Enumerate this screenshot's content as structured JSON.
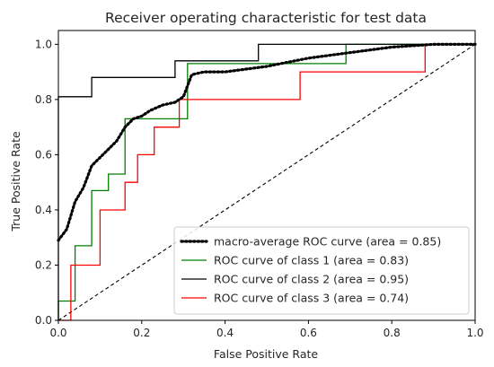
{
  "chart_data": {
    "type": "line",
    "title": "Receiver operating characteristic for test data",
    "xlabel": "False Positive Rate",
    "ylabel": "True Positive Rate",
    "xlim": [
      0.0,
      1.0
    ],
    "ylim": [
      0.0,
      1.05
    ],
    "xticks": [
      "0.0",
      "0.2",
      "0.4",
      "0.6",
      "0.8",
      "1.0"
    ],
    "yticks": [
      "0.0",
      "0.2",
      "0.4",
      "0.6",
      "0.8",
      "1.0"
    ],
    "grid": false,
    "legend_position": "lower-right",
    "series": [
      {
        "name": "macro-average ROC curve (area = 0.85)",
        "color": "#000000",
        "style": "dotted",
        "x": [
          0.0,
          0.02,
          0.04,
          0.06,
          0.08,
          0.1,
          0.12,
          0.14,
          0.16,
          0.18,
          0.2,
          0.22,
          0.25,
          0.28,
          0.3,
          0.32,
          0.35,
          0.4,
          0.5,
          0.6,
          0.7,
          0.8,
          0.9,
          1.0
        ],
        "y": [
          0.29,
          0.33,
          0.43,
          0.48,
          0.56,
          0.59,
          0.62,
          0.65,
          0.7,
          0.73,
          0.74,
          0.76,
          0.78,
          0.79,
          0.81,
          0.89,
          0.9,
          0.9,
          0.92,
          0.95,
          0.97,
          0.99,
          1.0,
          1.0
        ]
      },
      {
        "name": "ROC curve of class 1  (area = 0.83)",
        "color": "#008000",
        "style": "solid",
        "x": [
          0.0,
          0.0,
          0.04,
          0.04,
          0.08,
          0.08,
          0.12,
          0.12,
          0.16,
          0.16,
          0.31,
          0.31,
          0.69,
          0.69,
          1.0
        ],
        "y": [
          0.0,
          0.07,
          0.07,
          0.27,
          0.27,
          0.47,
          0.47,
          0.53,
          0.53,
          0.73,
          0.73,
          0.93,
          0.93,
          1.0,
          1.0
        ]
      },
      {
        "name": "ROC curve of class 2  (area = 0.95)",
        "color": "#000000",
        "style": "solid",
        "x": [
          0.0,
          0.0,
          0.08,
          0.08,
          0.28,
          0.28,
          0.48,
          0.48,
          1.0
        ],
        "y": [
          0.0,
          0.81,
          0.81,
          0.88,
          0.88,
          0.94,
          0.94,
          1.0,
          1.0
        ]
      },
      {
        "name": "ROC curve of class 3  (area = 0.74)",
        "color": "#ff0000",
        "style": "solid",
        "x": [
          0.0,
          0.03,
          0.03,
          0.1,
          0.1,
          0.16,
          0.16,
          0.19,
          0.19,
          0.23,
          0.23,
          0.29,
          0.29,
          0.58,
          0.58,
          0.88,
          0.88,
          1.0
        ],
        "y": [
          0.0,
          0.0,
          0.2,
          0.2,
          0.4,
          0.4,
          0.5,
          0.5,
          0.6,
          0.6,
          0.7,
          0.7,
          0.8,
          0.8,
          0.9,
          0.9,
          1.0,
          1.0
        ]
      },
      {
        "name": "",
        "color": "#000000",
        "style": "dashed",
        "x": [
          0.0,
          1.0
        ],
        "y": [
          0.0,
          1.0
        ]
      }
    ]
  }
}
